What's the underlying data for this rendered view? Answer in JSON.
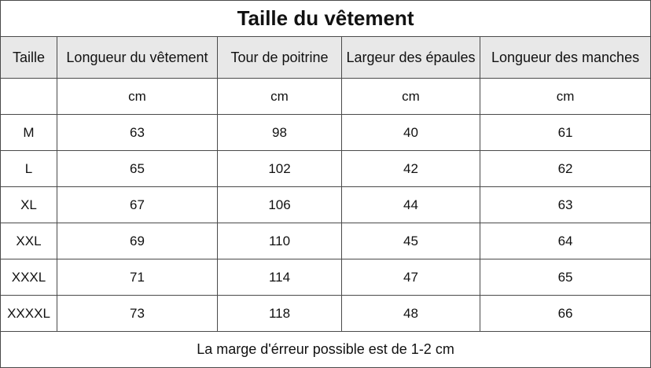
{
  "title": "Taille du vêtement",
  "headers": [
    "Taille",
    "Longueur du vêtement",
    "Tour de poitrine",
    "Largeur des épaules",
    "Longueur des manches"
  ],
  "units": [
    "",
    "cm",
    "cm",
    "cm",
    "cm"
  ],
  "rows": [
    [
      "M",
      "63",
      "98",
      "40",
      "61"
    ],
    [
      "L",
      "65",
      "102",
      "42",
      "62"
    ],
    [
      "XL",
      "67",
      "106",
      "44",
      "63"
    ],
    [
      "XXL",
      "69",
      "110",
      "45",
      "64"
    ],
    [
      "XXXL",
      "71",
      "114",
      "47",
      "65"
    ],
    [
      "XXXXL",
      "73",
      "118",
      "48",
      "66"
    ]
  ],
  "footer": "La marge d'érreur possible est de 1-2 cm"
}
